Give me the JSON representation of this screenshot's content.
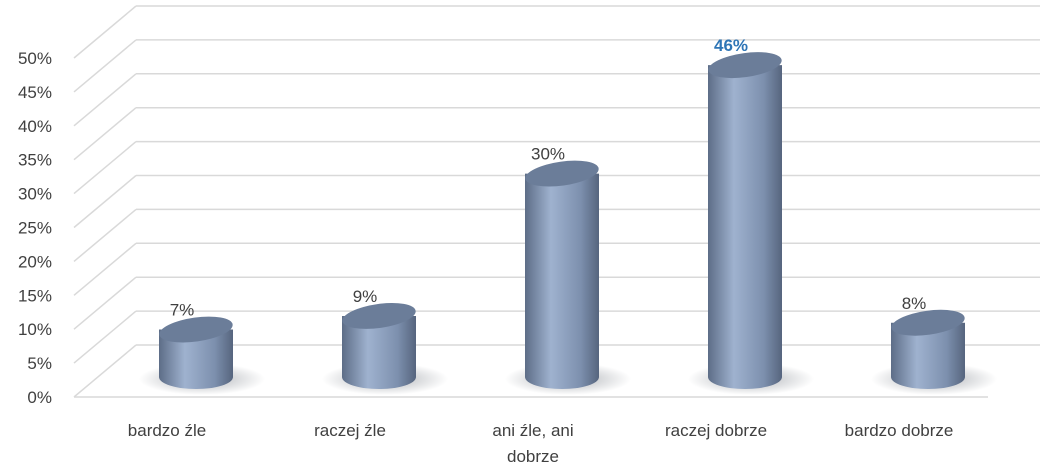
{
  "chart_data": {
    "type": "bar",
    "style": "3d-cylinder",
    "title": "",
    "xlabel": "",
    "ylabel": "",
    "categories": [
      "bardzo źle",
      "raczej źle",
      "ani źle, ani dobrze",
      "raczej dobrze",
      "bardzo dobrze"
    ],
    "category_lines": [
      [
        "bardzo źle"
      ],
      [
        "raczej źle"
      ],
      [
        "ani źle, ani",
        "dobrze"
      ],
      [
        "raczej dobrze"
      ],
      [
        "bardzo dobrze"
      ]
    ],
    "values": [
      7,
      9,
      30,
      46,
      8
    ],
    "data_labels": [
      "7%",
      "9%",
      "30%",
      "46%",
      "8%"
    ],
    "highlighted_index": 3,
    "y_ticks": [
      "0%",
      "5%",
      "10%",
      "15%",
      "20%",
      "25%",
      "30%",
      "35%",
      "40%",
      "45%",
      "50%"
    ],
    "ylim": [
      0,
      50
    ],
    "grid": true,
    "legend": "none",
    "colors": {
      "bar_light": "#9aaecb",
      "bar_mid": "#7f93b1",
      "bar_dark": "#56657e",
      "bar_top": "#6b7d99",
      "grid": "#d9d9d9",
      "text": "#404040",
      "highlight_label": "#2e75b6"
    }
  }
}
